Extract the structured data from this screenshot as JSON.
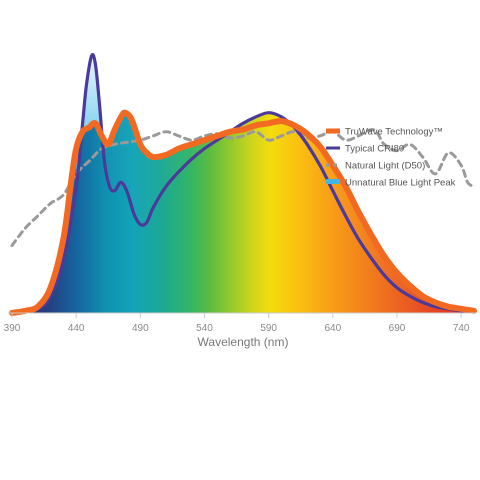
{
  "chart_data": {
    "type": "line",
    "xlabel": "Wavelength (nm)",
    "ylabel": "",
    "xlim": [
      390,
      750
    ],
    "ylim": [
      0,
      1.2
    ],
    "x_ticks": [
      390,
      440,
      490,
      540,
      590,
      640,
      690,
      740
    ],
    "grid": false,
    "legend_position": "top-right",
    "series": [
      {
        "name": "TruWave Technology™",
        "color": "#f26a21",
        "style": "thick-solid",
        "points": [
          [
            390,
            0
          ],
          [
            400,
            0.01
          ],
          [
            410,
            0.03
          ],
          [
            420,
            0.12
          ],
          [
            430,
            0.35
          ],
          [
            436,
            0.62
          ],
          [
            440,
            0.78
          ],
          [
            445,
            0.86
          ],
          [
            450,
            0.88
          ],
          [
            455,
            0.9
          ],
          [
            460,
            0.84
          ],
          [
            465,
            0.8
          ],
          [
            470,
            0.87
          ],
          [
            475,
            0.93
          ],
          [
            478,
            0.95
          ],
          [
            483,
            0.92
          ],
          [
            490,
            0.8
          ],
          [
            495,
            0.76
          ],
          [
            500,
            0.74
          ],
          [
            510,
            0.75
          ],
          [
            520,
            0.78
          ],
          [
            530,
            0.8
          ],
          [
            540,
            0.82
          ],
          [
            550,
            0.84
          ],
          [
            560,
            0.86
          ],
          [
            570,
            0.87
          ],
          [
            580,
            0.89
          ],
          [
            590,
            0.9
          ],
          [
            600,
            0.91
          ],
          [
            610,
            0.89
          ],
          [
            620,
            0.85
          ],
          [
            630,
            0.79
          ],
          [
            640,
            0.7
          ],
          [
            650,
            0.6
          ],
          [
            660,
            0.48
          ],
          [
            670,
            0.37
          ],
          [
            680,
            0.27
          ],
          [
            690,
            0.19
          ],
          [
            700,
            0.13
          ],
          [
            710,
            0.08
          ],
          [
            720,
            0.05
          ],
          [
            730,
            0.03
          ],
          [
            740,
            0.02
          ],
          [
            750,
            0.01
          ]
        ]
      },
      {
        "name": "Typical CRI80",
        "color": "#4b3a9a",
        "style": "solid",
        "points": [
          [
            390,
            0
          ],
          [
            410,
            0.02
          ],
          [
            420,
            0.08
          ],
          [
            430,
            0.25
          ],
          [
            440,
            0.6
          ],
          [
            445,
            0.9
          ],
          [
            448,
            1.08
          ],
          [
            452,
            1.22
          ],
          [
            455,
            1.18
          ],
          [
            458,
            1.0
          ],
          [
            462,
            0.72
          ],
          [
            466,
            0.6
          ],
          [
            470,
            0.58
          ],
          [
            475,
            0.62
          ],
          [
            480,
            0.57
          ],
          [
            485,
            0.47
          ],
          [
            490,
            0.42
          ],
          [
            495,
            0.43
          ],
          [
            500,
            0.5
          ],
          [
            510,
            0.6
          ],
          [
            520,
            0.67
          ],
          [
            530,
            0.73
          ],
          [
            540,
            0.78
          ],
          [
            550,
            0.82
          ],
          [
            560,
            0.86
          ],
          [
            570,
            0.9
          ],
          [
            580,
            0.93
          ],
          [
            590,
            0.95
          ],
          [
            600,
            0.93
          ],
          [
            610,
            0.88
          ],
          [
            620,
            0.8
          ],
          [
            630,
            0.7
          ],
          [
            640,
            0.58
          ],
          [
            650,
            0.46
          ],
          [
            660,
            0.35
          ],
          [
            670,
            0.26
          ],
          [
            680,
            0.18
          ],
          [
            690,
            0.12
          ],
          [
            700,
            0.08
          ],
          [
            710,
            0.05
          ],
          [
            720,
            0.03
          ],
          [
            730,
            0.02
          ],
          [
            740,
            0.01
          ],
          [
            750,
            0.01
          ]
        ]
      },
      {
        "name": "Natural Light (D50)",
        "color": "#9a9a9a",
        "style": "dashed",
        "points": [
          [
            390,
            0.32
          ],
          [
            400,
            0.4
          ],
          [
            410,
            0.46
          ],
          [
            420,
            0.52
          ],
          [
            430,
            0.56
          ],
          [
            440,
            0.66
          ],
          [
            450,
            0.72
          ],
          [
            460,
            0.78
          ],
          [
            470,
            0.8
          ],
          [
            480,
            0.81
          ],
          [
            490,
            0.82
          ],
          [
            500,
            0.84
          ],
          [
            510,
            0.86
          ],
          [
            520,
            0.84
          ],
          [
            530,
            0.82
          ],
          [
            540,
            0.84
          ],
          [
            550,
            0.85
          ],
          [
            560,
            0.83
          ],
          [
            570,
            0.84
          ],
          [
            580,
            0.86
          ],
          [
            590,
            0.82
          ],
          [
            600,
            0.84
          ],
          [
            610,
            0.86
          ],
          [
            620,
            0.83
          ],
          [
            630,
            0.84
          ],
          [
            640,
            0.86
          ],
          [
            650,
            0.82
          ],
          [
            660,
            0.84
          ],
          [
            670,
            0.87
          ],
          [
            675,
            0.85
          ],
          [
            680,
            0.8
          ],
          [
            690,
            0.77
          ],
          [
            700,
            0.8
          ],
          [
            710,
            0.74
          ],
          [
            720,
            0.66
          ],
          [
            730,
            0.76
          ],
          [
            740,
            0.7
          ],
          [
            745,
            0.62
          ],
          [
            750,
            0.6
          ]
        ]
      },
      {
        "name": "Unnatural Blue Light Peak",
        "color": "#3fb6e6",
        "style": "fill"
      }
    ]
  },
  "colors": {
    "truwave": "#f26a21",
    "cri80": "#4b3a9a",
    "d50": "#9a9a9a",
    "blue_peak": "#3fb6e6",
    "axis": "#cccccc"
  }
}
